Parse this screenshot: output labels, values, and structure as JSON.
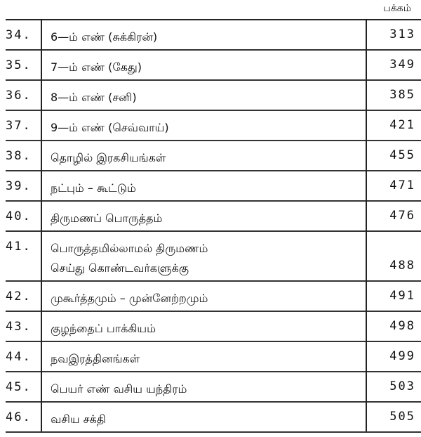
{
  "header": {
    "page_label": "பக்கம்"
  },
  "entries": [
    {
      "num": "34.",
      "title": [
        "6—ம் எண் (சுக்கிரன்)"
      ],
      "page": "313"
    },
    {
      "num": "35.",
      "title": [
        "7—ம் எண் (கேது)"
      ],
      "page": "349"
    },
    {
      "num": "36.",
      "title": [
        "8—ம் எண் (சனி)"
      ],
      "page": "385"
    },
    {
      "num": "37.",
      "title": [
        "9—ம் எண் (செவ்வாய்)"
      ],
      "page": "421"
    },
    {
      "num": "38.",
      "title": [
        "தொழில் இரகசியங்கள்"
      ],
      "page": "455"
    },
    {
      "num": "39.",
      "title": [
        "நட்பும் – கூட்டும்"
      ],
      "page": "471"
    },
    {
      "num": "40.",
      "title": [
        "திருமணப் பொருத்தம்"
      ],
      "page": "476"
    },
    {
      "num": "41.",
      "title": [
        "பொருத்தமில்லாமல் திருமணம்",
        "செய்து கொண்டவர்களுக்கு"
      ],
      "page": "488"
    },
    {
      "num": "42.",
      "title": [
        "முகூர்த்தமும் – முன்னேற்றமும்"
      ],
      "page": "491"
    },
    {
      "num": "43.",
      "title": [
        "குழந்தைப் பாக்கியம்"
      ],
      "page": "498"
    },
    {
      "num": "44.",
      "title": [
        "நவஇரத்தினங்கள்"
      ],
      "page": "499"
    },
    {
      "num": "45.",
      "title": [
        "பெயர் எண் வசிய யந்திரம்"
      ],
      "page": "503"
    },
    {
      "num": "46.",
      "title": [
        "வசிய சக்தி"
      ],
      "page": "505"
    }
  ]
}
